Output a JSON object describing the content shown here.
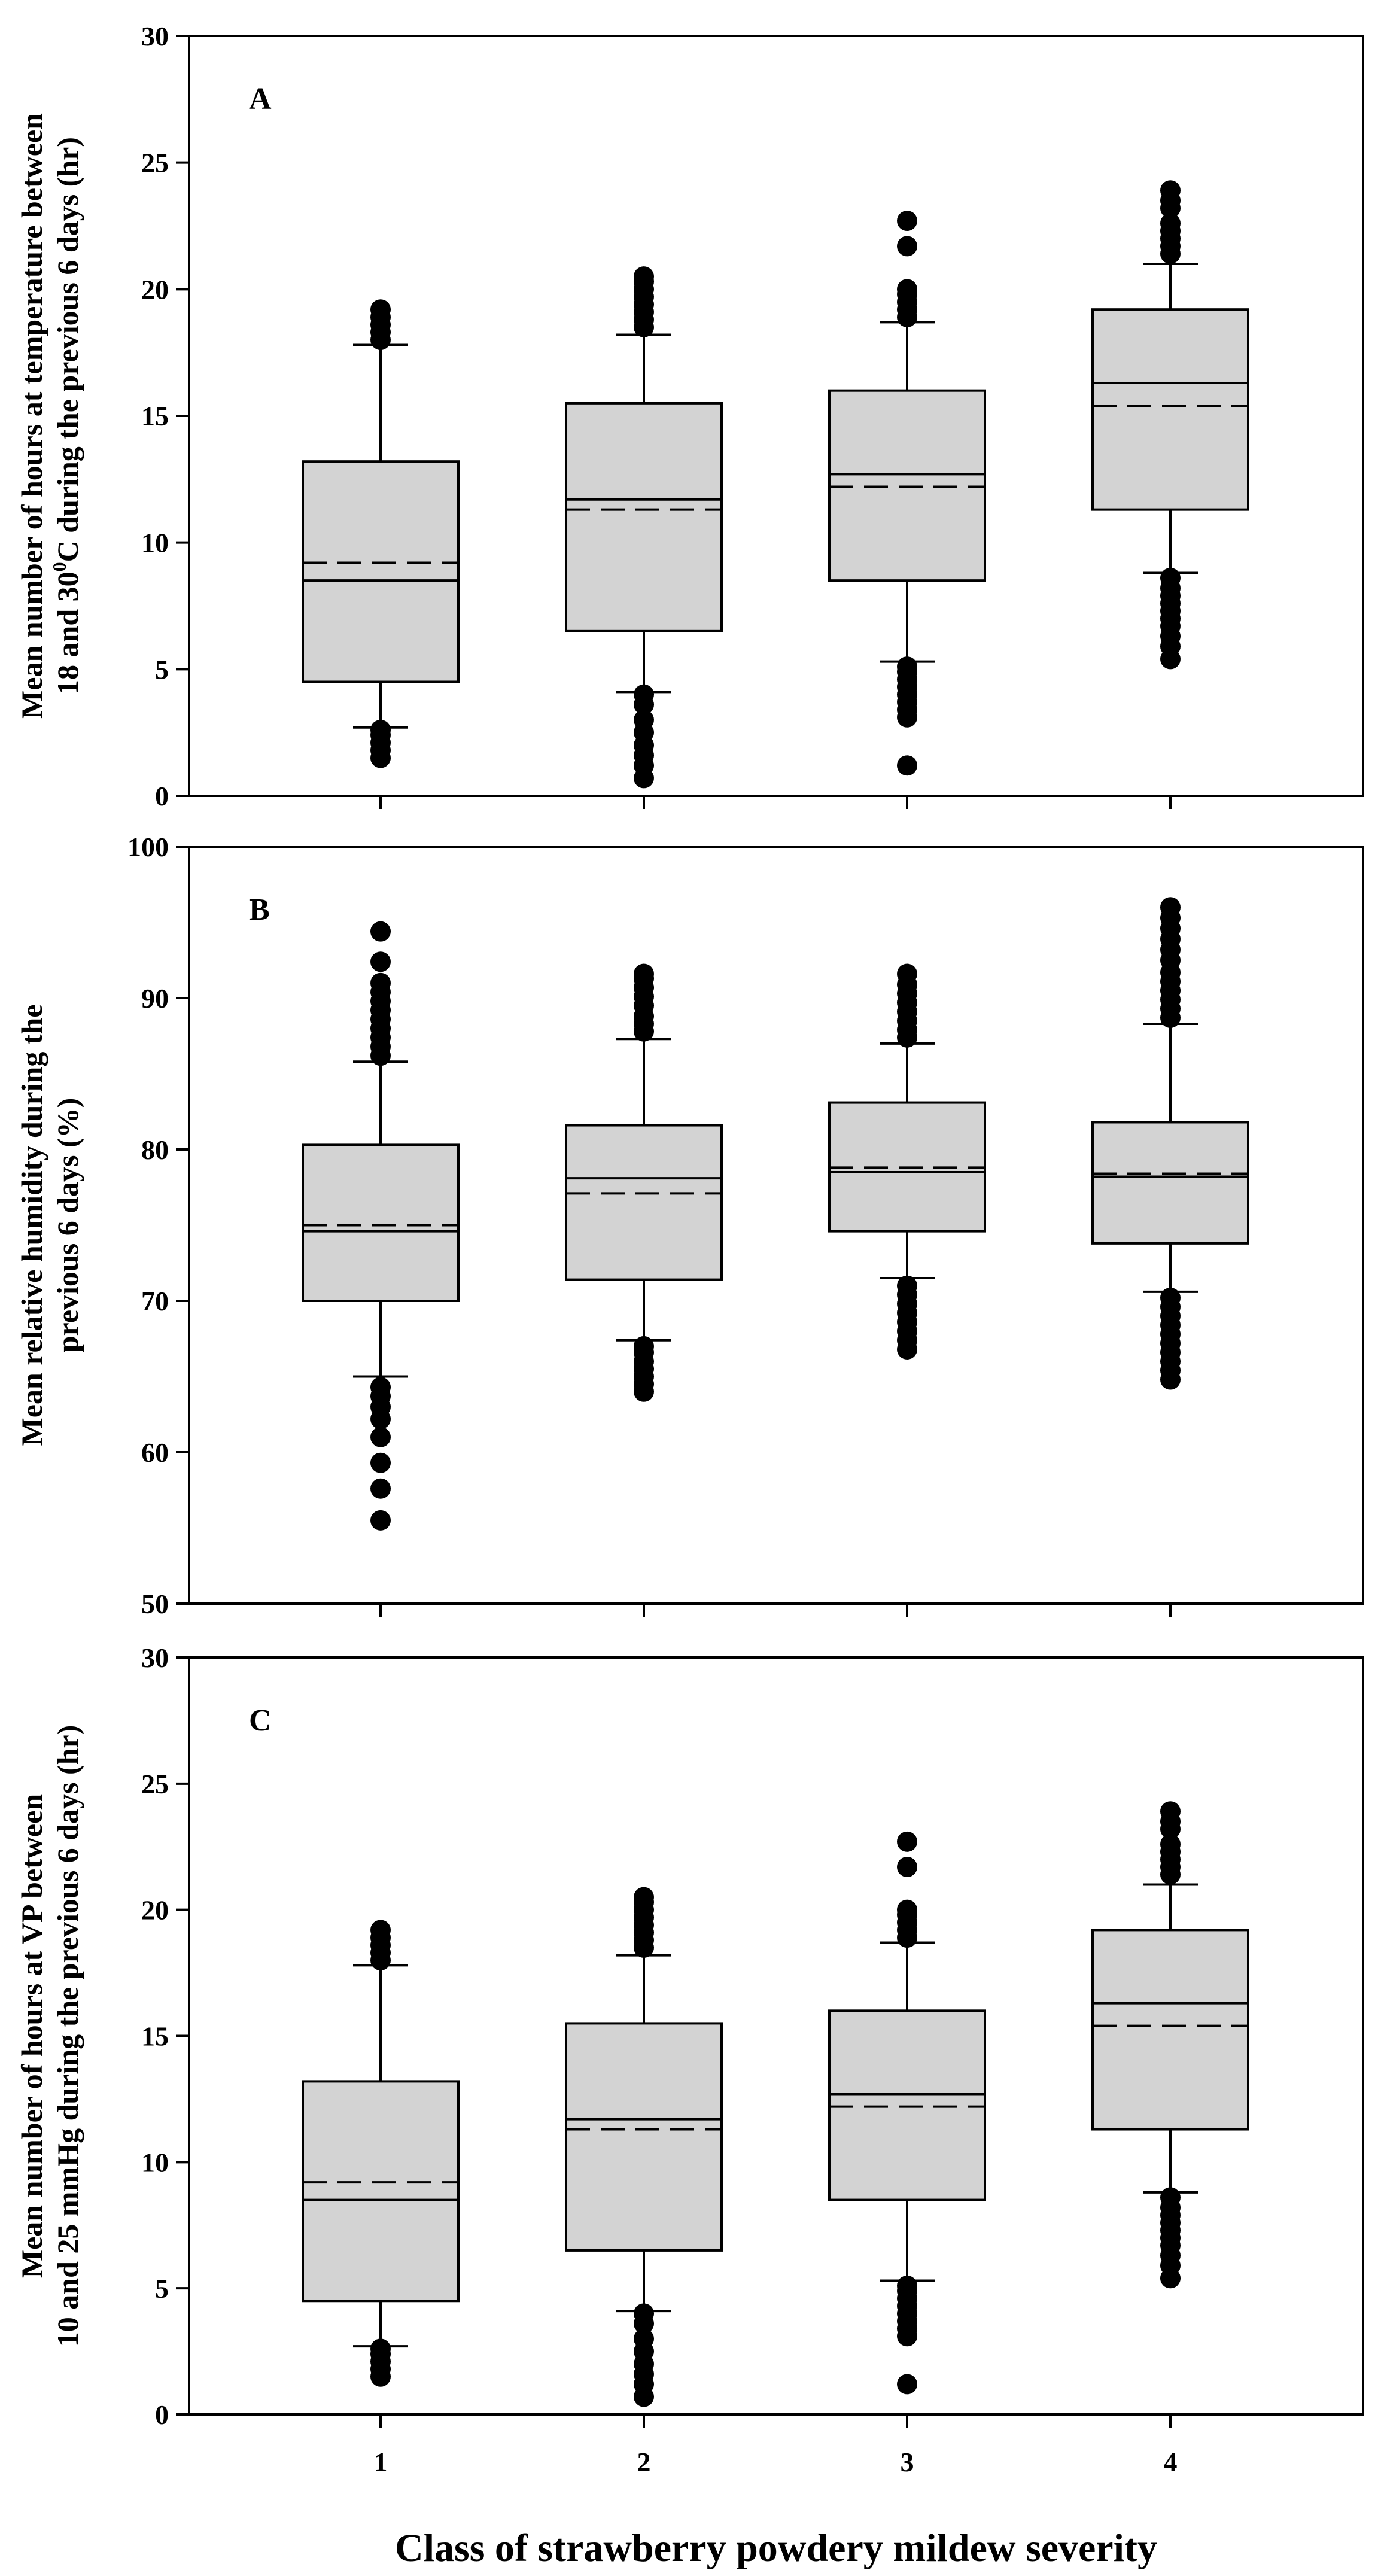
{
  "xlabel": "Class of strawberry powdery mildew severity",
  "categories": [
    "1",
    "2",
    "3",
    "4"
  ],
  "chart_data": [
    {
      "type": "box",
      "panel_letter": "A",
      "ylabel_lines": [
        "Mean number of hours at temperature between",
        "18 and 30",
        "0",
        "C during the previous 6 days (hr)"
      ],
      "ylim": [
        0,
        30
      ],
      "yticks": [
        0,
        5,
        10,
        15,
        20,
        25,
        30
      ],
      "categories": [
        "1",
        "2",
        "3",
        "4"
      ],
      "boxes": [
        {
          "q1": 4.5,
          "median": 8.5,
          "mean": 9.2,
          "q3": 13.2,
          "whisker_low": 2.7,
          "whisker_high": 17.8,
          "outliers": [
            1.5,
            1.8,
            2.1,
            2.4,
            2.6,
            18.0,
            18.3,
            18.6,
            18.9,
            19.2
          ]
        },
        {
          "q1": 6.5,
          "median": 11.7,
          "mean": 11.3,
          "q3": 15.5,
          "whisker_low": 4.1,
          "whisker_high": 18.2,
          "outliers": [
            0.7,
            1.2,
            1.6,
            2.0,
            2.5,
            3.0,
            3.6,
            4.0,
            18.5,
            18.8,
            19.1,
            19.4,
            19.7,
            20.0,
            20.3,
            20.5
          ]
        },
        {
          "q1": 8.5,
          "median": 12.7,
          "mean": 12.2,
          "q3": 16.0,
          "whisker_low": 5.3,
          "whisker_high": 18.7,
          "outliers": [
            1.2,
            3.1,
            3.4,
            3.7,
            4.0,
            4.3,
            4.6,
            4.9,
            5.1,
            18.9,
            19.2,
            19.5,
            19.8,
            20.0,
            21.7,
            22.7
          ]
        },
        {
          "q1": 11.3,
          "median": 16.3,
          "mean": 15.4,
          "q3": 19.2,
          "whisker_low": 8.8,
          "whisker_high": 21.0,
          "outliers": [
            5.4,
            5.9,
            6.3,
            6.7,
            7.0,
            7.3,
            7.6,
            7.9,
            8.2,
            8.6,
            21.4,
            21.7,
            22.0,
            22.3,
            22.6,
            23.2,
            23.5,
            23.9
          ]
        }
      ]
    },
    {
      "type": "box",
      "panel_letter": "B",
      "ylabel_lines": [
        "Mean relative humidity during the",
        "previous 6 days (%)"
      ],
      "ylim": [
        50,
        100
      ],
      "yticks": [
        50,
        60,
        70,
        80,
        90,
        100
      ],
      "categories": [
        "1",
        "2",
        "3",
        "4"
      ],
      "boxes": [
        {
          "q1": 70.0,
          "median": 74.6,
          "mean": 75.0,
          "q3": 80.3,
          "whisker_low": 65.0,
          "whisker_high": 85.8,
          "outliers": [
            55.5,
            57.6,
            59.3,
            61.0,
            62.2,
            63.0,
            63.7,
            64.3,
            86.2,
            86.8,
            87.4,
            88.0,
            88.6,
            89.2,
            89.8,
            90.4,
            91.0,
            92.4,
            94.4
          ]
        },
        {
          "q1": 71.4,
          "median": 78.1,
          "mean": 77.1,
          "q3": 81.6,
          "whisker_low": 67.4,
          "whisker_high": 87.3,
          "outliers": [
            64.0,
            64.5,
            65.0,
            65.5,
            66.0,
            66.6,
            67.0,
            87.8,
            88.3,
            88.8,
            89.5,
            90.1,
            90.7,
            91.3,
            91.6
          ]
        },
        {
          "q1": 74.6,
          "median": 78.5,
          "mean": 78.8,
          "q3": 83.1,
          "whisker_low": 71.5,
          "whisker_high": 87.0,
          "outliers": [
            66.8,
            67.4,
            68.0,
            68.6,
            69.2,
            69.8,
            70.4,
            71.0,
            87.4,
            87.9,
            88.5,
            89.1,
            89.7,
            90.3,
            90.9,
            91.6
          ]
        },
        {
          "q1": 73.8,
          "median": 78.2,
          "mean": 78.4,
          "q3": 81.8,
          "whisker_low": 70.6,
          "whisker_high": 88.3,
          "outliers": [
            64.8,
            65.4,
            66.0,
            66.6,
            67.2,
            67.8,
            68.4,
            69.0,
            69.6,
            70.2,
            88.7,
            89.3,
            89.9,
            90.5,
            91.1,
            91.7,
            92.5,
            93.2,
            93.9,
            94.6,
            95.3,
            96.0
          ]
        }
      ]
    },
    {
      "type": "box",
      "panel_letter": "C",
      "ylabel_lines": [
        "Mean number of hours at VP between",
        "10 and 25 mmHg during the previous 6 days (hr)"
      ],
      "ylim": [
        0,
        30
      ],
      "yticks": [
        0,
        5,
        10,
        15,
        20,
        25,
        30
      ],
      "categories": [
        "1",
        "2",
        "3",
        "4"
      ],
      "boxes": [
        {
          "q1": 4.5,
          "median": 8.5,
          "mean": 9.2,
          "q3": 13.2,
          "whisker_low": 2.7,
          "whisker_high": 17.8,
          "outliers": [
            1.5,
            1.8,
            2.1,
            2.4,
            2.6,
            18.0,
            18.3,
            18.6,
            18.9,
            19.2
          ]
        },
        {
          "q1": 6.5,
          "median": 11.7,
          "mean": 11.3,
          "q3": 15.5,
          "whisker_low": 4.1,
          "whisker_high": 18.2,
          "outliers": [
            0.7,
            1.2,
            1.6,
            2.0,
            2.5,
            3.0,
            3.6,
            4.0,
            18.5,
            18.8,
            19.1,
            19.4,
            19.7,
            20.0,
            20.3,
            20.5
          ]
        },
        {
          "q1": 8.5,
          "median": 12.7,
          "mean": 12.2,
          "q3": 16.0,
          "whisker_low": 5.3,
          "whisker_high": 18.7,
          "outliers": [
            1.2,
            3.1,
            3.4,
            3.7,
            4.0,
            4.3,
            4.6,
            4.9,
            5.1,
            18.9,
            19.2,
            19.5,
            19.8,
            20.0,
            21.7,
            22.7
          ]
        },
        {
          "q1": 11.3,
          "median": 16.3,
          "mean": 15.4,
          "q3": 19.2,
          "whisker_low": 8.8,
          "whisker_high": 21.0,
          "outliers": [
            5.4,
            5.9,
            6.3,
            6.7,
            7.0,
            7.3,
            7.6,
            7.9,
            8.2,
            8.6,
            21.4,
            21.7,
            22.0,
            22.3,
            22.6,
            23.2,
            23.5,
            23.9
          ]
        }
      ]
    }
  ],
  "colors": {
    "box_fill": "#d3d3d3",
    "stroke": "#000000",
    "outlier": "#000000"
  }
}
